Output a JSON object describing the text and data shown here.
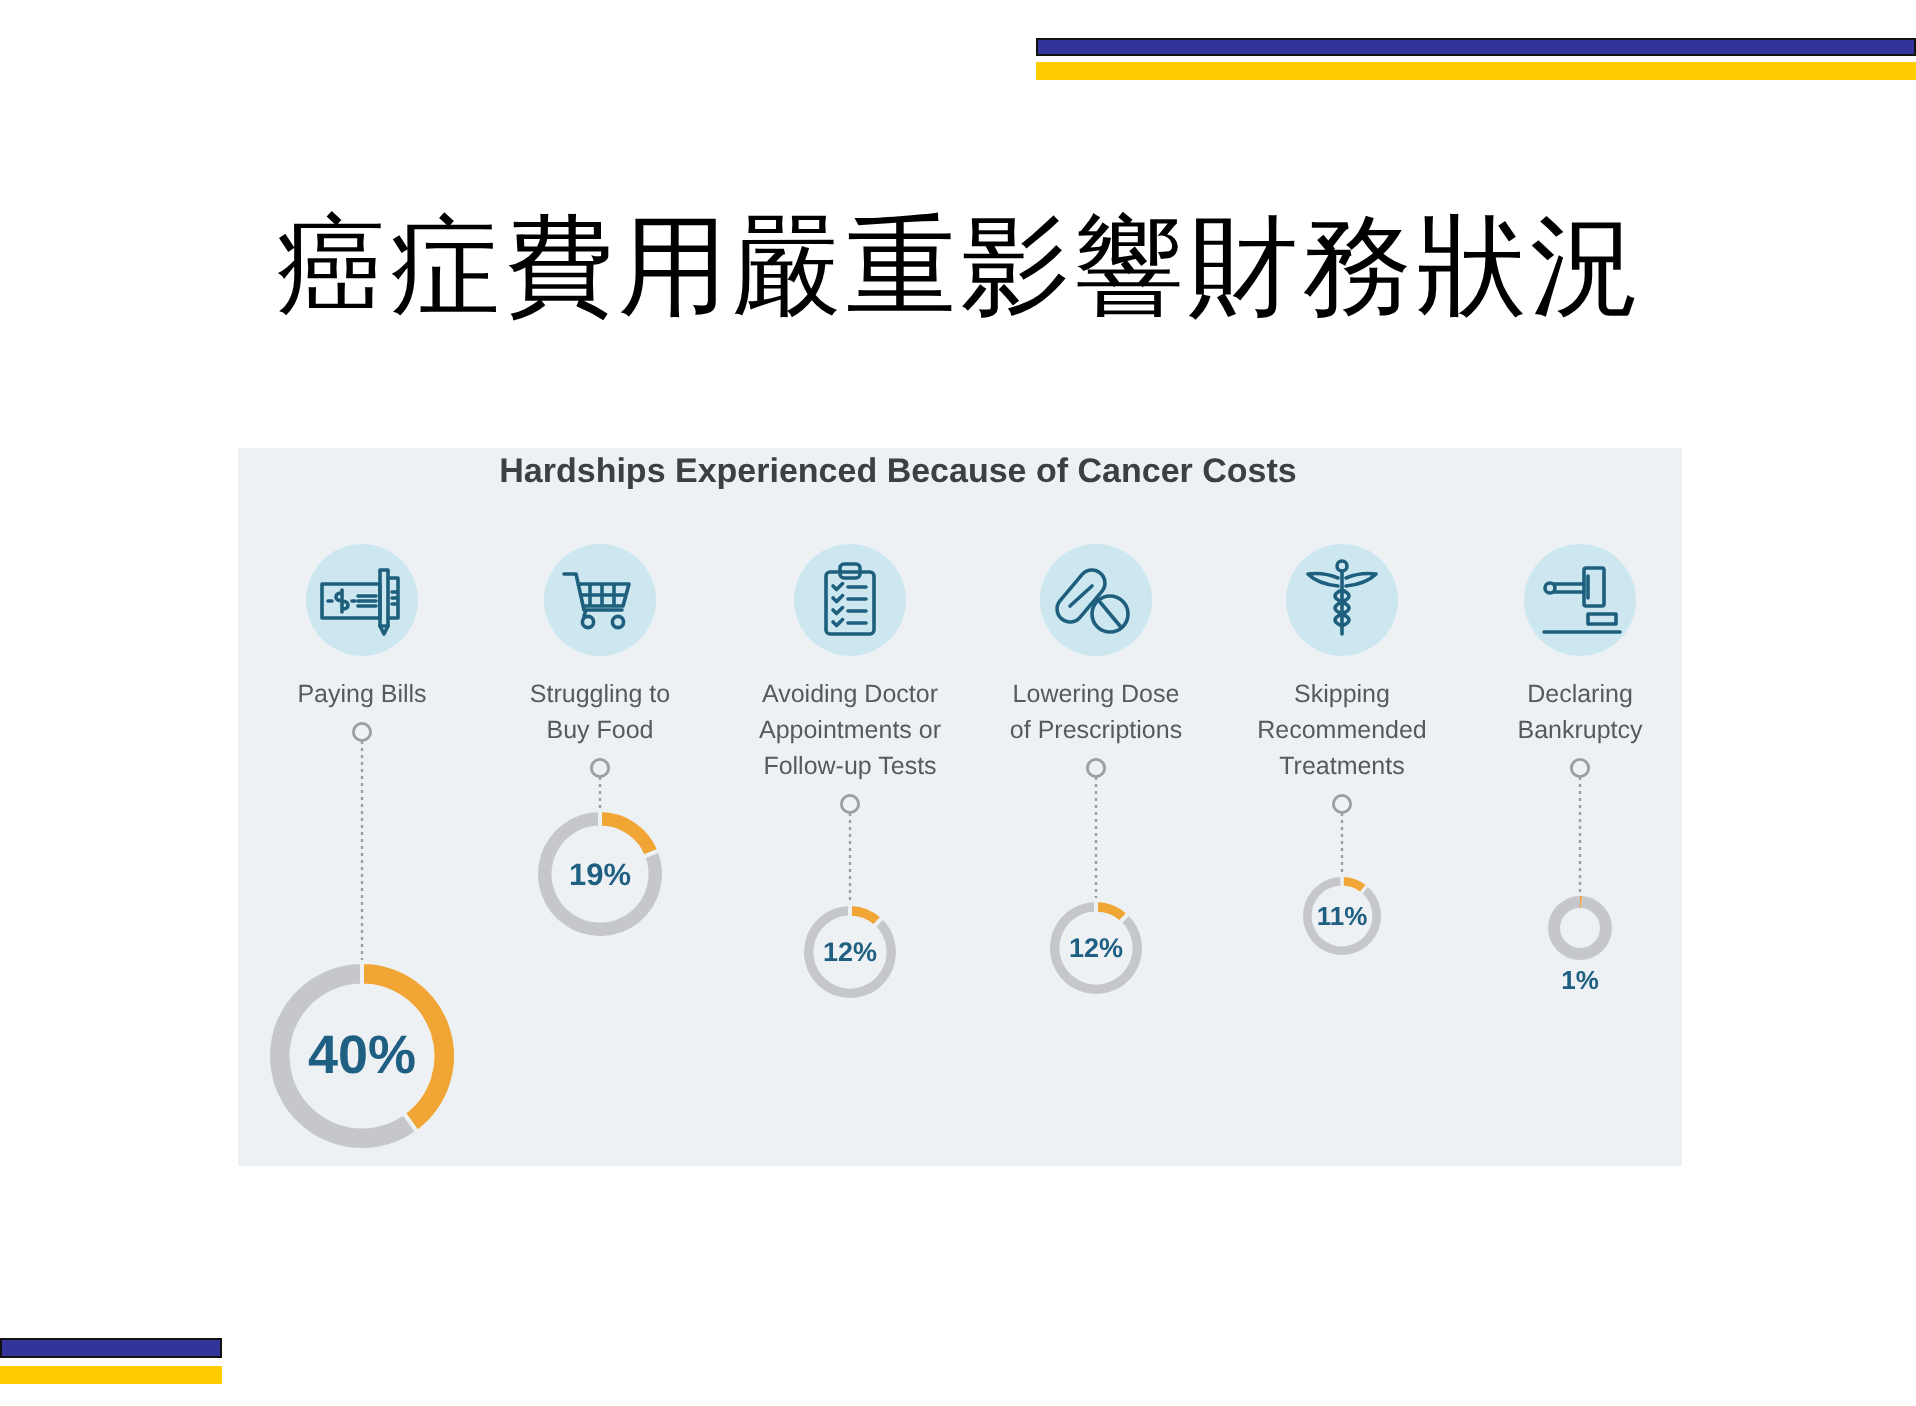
{
  "chart_data": [
    {
      "type": "other",
      "title": "癌症費用嚴重影響財務狀況",
      "subtitle": "Hardships Experienced Because of Cancer Costs"
    },
    {
      "type": "donut",
      "title": "Paying Bills",
      "categories": [
        null,
        null
      ],
      "values": [
        40,
        60
      ],
      "colors": [
        "#f0a535",
        "#c5c7ca"
      ],
      "annotations": [
        "40%"
      ]
    },
    {
      "type": "donut",
      "title": "Struggling to Buy Food",
      "categories": [
        null,
        null
      ],
      "values": [
        19,
        81
      ],
      "colors": [
        "#f0a535",
        "#c5c7ca"
      ],
      "annotations": [
        "19%"
      ]
    },
    {
      "type": "donut",
      "title": "Avoiding Doctor Appointments or Follow-up Tests",
      "categories": [
        null,
        null
      ],
      "values": [
        12,
        88
      ],
      "colors": [
        "#f0a535",
        "#c5c7ca"
      ],
      "annotations": [
        "12%"
      ]
    },
    {
      "type": "donut",
      "title": "Lowering Dose of Prescriptions",
      "categories": [
        null,
        null
      ],
      "values": [
        12,
        88
      ],
      "colors": [
        "#f0a535",
        "#c5c7ca"
      ],
      "annotations": [
        "12%"
      ]
    },
    {
      "type": "donut",
      "title": "Skipping Recommended Treatments",
      "categories": [
        null,
        null
      ],
      "values": [
        11,
        89
      ],
      "colors": [
        "#f0a535",
        "#c5c7ca"
      ],
      "annotations": [
        "11%"
      ]
    },
    {
      "type": "donut",
      "title": "Declaring Bankruptcy",
      "categories": [
        null,
        null
      ],
      "values": [
        1,
        99
      ],
      "colors": [
        "#f0a535",
        "#c5c7ca"
      ],
      "annotations": [
        "1%"
      ]
    }
  ]
}
